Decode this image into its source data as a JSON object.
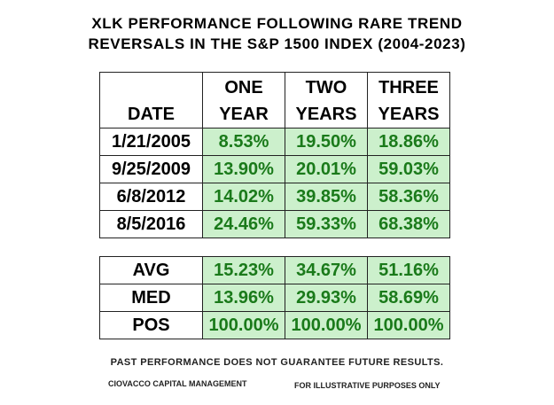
{
  "title": {
    "line1": "XLK  PERFORMANCE FOLLOWING RARE TREND",
    "line2": "REVERSALS IN THE S&P 1500 INDEX (2004-2023)"
  },
  "table": {
    "headers": {
      "date": "DATE",
      "col1": [
        "ONE",
        "YEAR"
      ],
      "col2": [
        "TWO",
        "YEARS"
      ],
      "col3": [
        "THREE",
        "YEARS"
      ]
    },
    "rows": [
      {
        "date": "1/21/2005",
        "one": "8.53%",
        "two": "19.50%",
        "three": "18.86%"
      },
      {
        "date": "9/25/2009",
        "one": "13.90%",
        "two": "20.01%",
        "three": "59.03%"
      },
      {
        "date": "6/8/2012",
        "one": "14.02%",
        "two": "39.85%",
        "three": "58.36%"
      },
      {
        "date": "8/5/2016",
        "one": "24.46%",
        "two": "59.33%",
        "three": "68.38%"
      }
    ]
  },
  "summary": {
    "rows": [
      {
        "label": "AVG",
        "one": "15.23%",
        "two": "34.67%",
        "three": "51.16%"
      },
      {
        "label": "MED",
        "one": "13.96%",
        "two": "29.93%",
        "three": "58.69%"
      },
      {
        "label": "POS",
        "one": "100.00%",
        "two": "100.00%",
        "three": "100.00%"
      }
    ]
  },
  "footer": {
    "disclaimer": "PAST PERFORMANCE DOES NOT GUARANTEE FUTURE RESULTS.",
    "credit": "CIOVACCO CAPITAL MANAGEMENT",
    "illustrative": "FOR ILLUSTRATIVE PURPOSES ONLY"
  },
  "colors": {
    "value_bg": "#ccf0cc",
    "value_text": "#1a7a1a"
  }
}
